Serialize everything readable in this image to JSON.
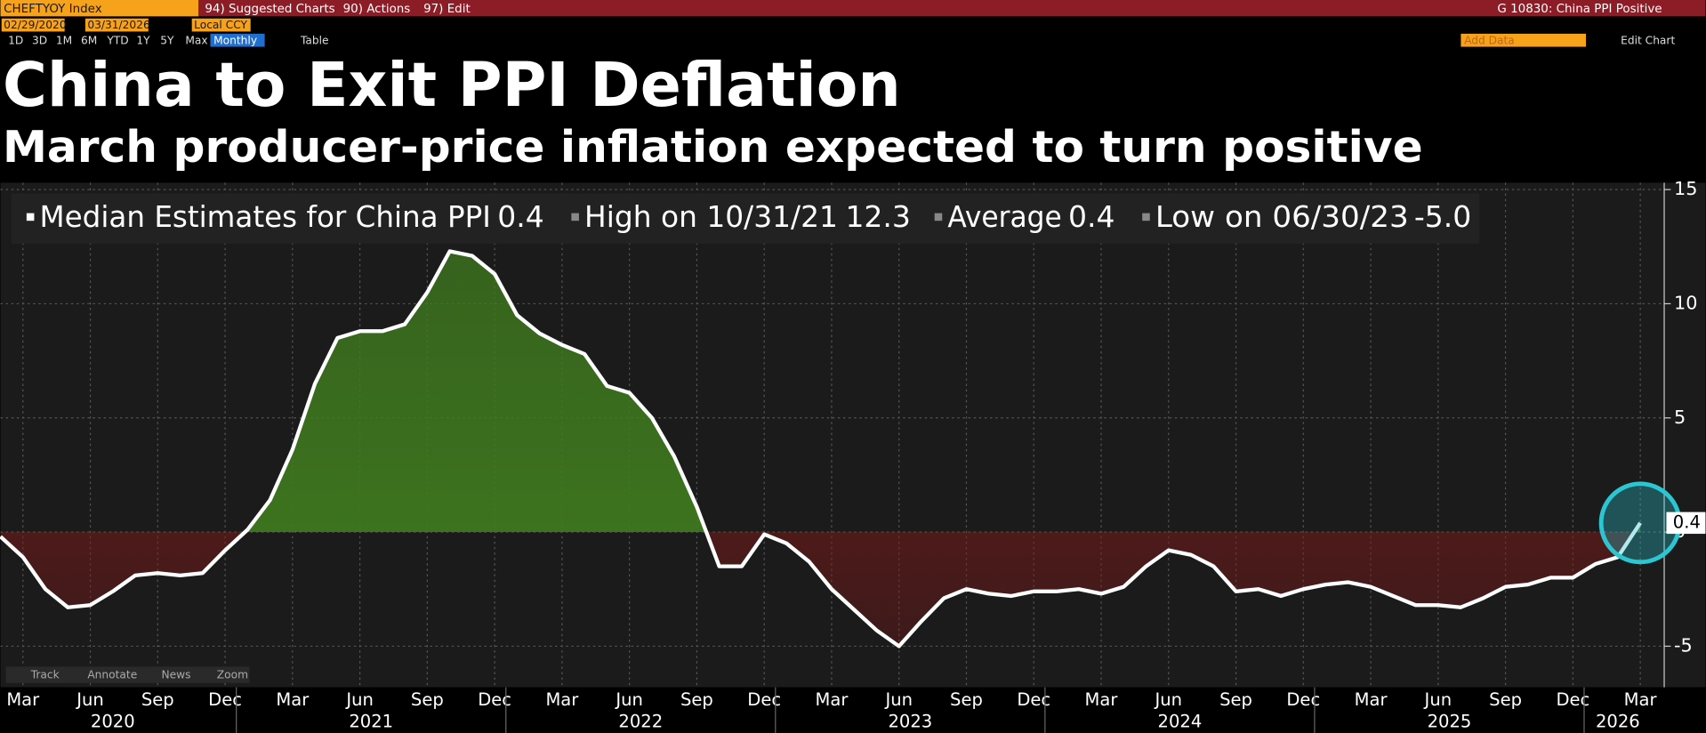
{
  "toolbar": {
    "ticker": "CHEFTYOY Index",
    "menus": [
      "94) Suggested Charts",
      "90) Actions",
      "97) Edit"
    ],
    "chart_name": "G 10830: China PPI Positive",
    "start_date": "02/29/2020",
    "end_date": "03/31/2026",
    "currency": "Local CCY",
    "periods": [
      "1D",
      "3D",
      "1M",
      "6M",
      "YTD",
      "1Y",
      "5Y",
      "Max"
    ],
    "frequency": "Monthly",
    "table": "Table",
    "add_data": "Add Data",
    "edit_chart": "Edit Chart"
  },
  "chart_tools": [
    "Track",
    "Annotate",
    "News",
    "Zoom"
  ],
  "chart_data": {
    "type": "line",
    "title": "China to Exit PPI Deflation",
    "subtitle": "March producer-price inflation expected to turn positive",
    "stats": [
      {
        "name": "Median Estimates for China PPI",
        "value": 0.4
      },
      {
        "name": "High on 10/31/21",
        "value": 12.3
      },
      {
        "name": "Average",
        "value": 0.4
      },
      {
        "name": "Low on 06/30/23",
        "value": -5,
        "value_label": "-5.0"
      }
    ],
    "x": [
      "2020-02",
      "2020-03",
      "2020-04",
      "2020-05",
      "2020-06",
      "2020-07",
      "2020-08",
      "2020-09",
      "2020-10",
      "2020-11",
      "2020-12",
      "2021-01",
      "2021-02",
      "2021-03",
      "2021-04",
      "2021-05",
      "2021-06",
      "2021-07",
      "2021-08",
      "2021-09",
      "2021-10",
      "2021-11",
      "2021-12",
      "2022-01",
      "2022-02",
      "2022-03",
      "2022-04",
      "2022-05",
      "2022-06",
      "2022-07",
      "2022-08",
      "2022-09",
      "2022-10",
      "2022-11",
      "2022-12",
      "2023-01",
      "2023-02",
      "2023-03",
      "2023-04",
      "2023-05",
      "2023-06",
      "2023-07",
      "2023-08",
      "2023-09",
      "2023-10",
      "2023-11",
      "2023-12",
      "2024-01",
      "2024-02",
      "2024-03",
      "2024-04",
      "2024-05",
      "2024-06",
      "2024-07",
      "2024-08",
      "2024-09",
      "2024-10",
      "2024-11",
      "2024-12",
      "2025-01",
      "2025-02",
      "2025-03",
      "2025-04",
      "2025-05",
      "2025-06",
      "2025-07",
      "2025-08",
      "2025-09",
      "2025-10",
      "2025-11",
      "2025-12",
      "2026-01",
      "2026-02",
      "2026-03"
    ],
    "series": [
      {
        "name": "Median Estimates for China PPI",
        "color": "#ffffff",
        "values": [
          -0.2,
          -1.1,
          -2.5,
          -3.3,
          -3.2,
          -2.6,
          -1.9,
          -1.8,
          -1.9,
          -1.8,
          -0.8,
          0.1,
          1.4,
          3.6,
          6.5,
          8.5,
          8.8,
          8.8,
          9.1,
          10.5,
          12.3,
          12.1,
          11.3,
          9.5,
          8.7,
          8.2,
          7.8,
          6.4,
          6.1,
          5.0,
          3.3,
          1.1,
          -1.5,
          -1.5,
          -0.1,
          -0.5,
          -1.3,
          -2.5,
          -3.4,
          -4.3,
          -5.0,
          -3.9,
          -2.9,
          -2.5,
          -2.7,
          -2.8,
          -2.6,
          -2.6,
          -2.5,
          -2.7,
          -2.4,
          -1.5,
          -0.8,
          -1.0,
          -1.5,
          -2.6,
          -2.5,
          -2.8,
          -2.5,
          -2.3,
          -2.2,
          -2.4,
          -2.8,
          -3.2,
          -3.2,
          -3.3,
          -2.9,
          -2.4,
          -2.3,
          -2.0,
          -2.0,
          -1.4,
          -1.1,
          0.4
        ]
      }
    ],
    "positive_color": "#3f7a1e",
    "negative_color": "#7a1a1a",
    "xticks": [
      {
        "value": "2020-03",
        "label": "Mar"
      },
      {
        "value": "2020-06",
        "label": "Jun"
      },
      {
        "value": "2020-09",
        "label": "Sep"
      },
      {
        "value": "2020-12",
        "label": "Dec"
      },
      {
        "value": "2021-03",
        "label": "Mar"
      },
      {
        "value": "2021-06",
        "label": "Jun"
      },
      {
        "value": "2021-09",
        "label": "Sep"
      },
      {
        "value": "2021-12",
        "label": "Dec"
      },
      {
        "value": "2022-03",
        "label": "Mar"
      },
      {
        "value": "2022-06",
        "label": "Jun"
      },
      {
        "value": "2022-09",
        "label": "Sep"
      },
      {
        "value": "2022-12",
        "label": "Dec"
      },
      {
        "value": "2023-03",
        "label": "Mar"
      },
      {
        "value": "2023-06",
        "label": "Jun"
      },
      {
        "value": "2023-09",
        "label": "Sep"
      },
      {
        "value": "2023-12",
        "label": "Dec"
      },
      {
        "value": "2024-03",
        "label": "Mar"
      },
      {
        "value": "2024-06",
        "label": "Jun"
      },
      {
        "value": "2024-09",
        "label": "Sep"
      },
      {
        "value": "2024-12",
        "label": "Dec"
      },
      {
        "value": "2025-03",
        "label": "Mar"
      },
      {
        "value": "2025-06",
        "label": "Jun"
      },
      {
        "value": "2025-09",
        "label": "Sep"
      },
      {
        "value": "2025-12",
        "label": "Dec"
      },
      {
        "value": "2026-03",
        "label": "Mar"
      }
    ],
    "years": [
      "2020",
      "2021",
      "2022",
      "2023",
      "2024",
      "2025",
      "2026"
    ],
    "ylim": [
      -6.8,
      15.3
    ],
    "yticks": [
      -5,
      0,
      5,
      10,
      15
    ],
    "y_axis_side": "right",
    "grid": true
  }
}
